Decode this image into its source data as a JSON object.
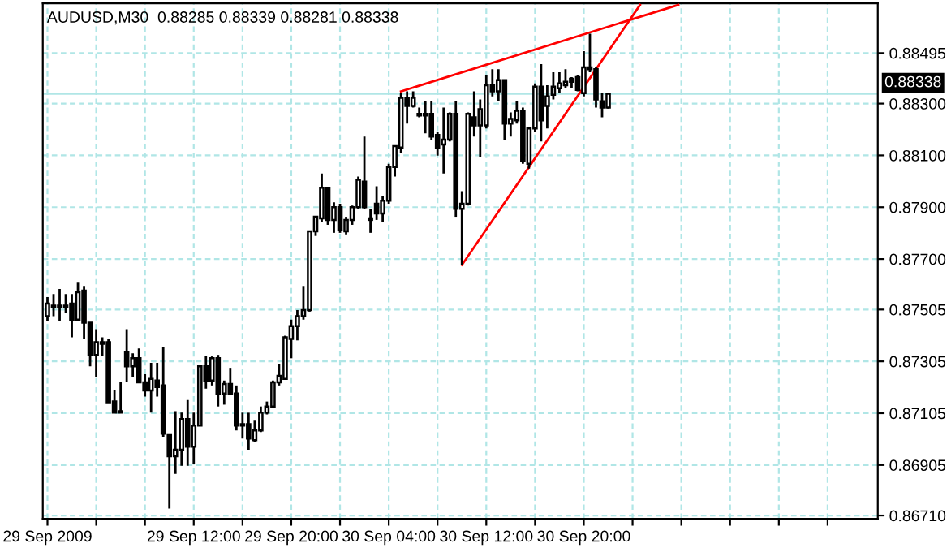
{
  "chart_data": {
    "type": "candlestick",
    "title": "AUDUSD,M30  0.88285 0.88339 0.88281 0.88338",
    "x": [
      "2009-09-29T00:00",
      "2009-09-29T00:30",
      "2009-09-29T01:00",
      "2009-09-29T01:30",
      "2009-09-29T02:00",
      "2009-09-29T02:30",
      "2009-09-29T03:00",
      "2009-09-29T03:30",
      "2009-09-29T04:00",
      "2009-09-29T04:30",
      "2009-09-29T05:00",
      "2009-09-29T05:30",
      "2009-09-29T06:00",
      "2009-09-29T06:30",
      "2009-09-29T07:00",
      "2009-09-29T07:30",
      "2009-09-29T08:00",
      "2009-09-29T08:30",
      "2009-09-29T09:00",
      "2009-09-29T09:30",
      "2009-09-29T10:00",
      "2009-09-29T10:30",
      "2009-09-29T11:00",
      "2009-09-29T11:30",
      "2009-09-29T12:00",
      "2009-09-29T12:30",
      "2009-09-29T13:00",
      "2009-09-29T13:30",
      "2009-09-29T14:00",
      "2009-09-29T14:30",
      "2009-09-29T15:00",
      "2009-09-29T15:30",
      "2009-09-29T16:00",
      "2009-09-29T16:30",
      "2009-09-29T17:00",
      "2009-09-29T17:30",
      "2009-09-29T18:00",
      "2009-09-29T18:30",
      "2009-09-29T19:00",
      "2009-09-29T19:30",
      "2009-09-29T20:00",
      "2009-09-29T20:30",
      "2009-09-29T21:00",
      "2009-09-29T21:30",
      "2009-09-29T22:00",
      "2009-09-29T22:30",
      "2009-09-29T23:00",
      "2009-09-29T23:30",
      "2009-09-30T00:00",
      "2009-09-30T00:30",
      "2009-09-30T01:00",
      "2009-09-30T01:30",
      "2009-09-30T02:00",
      "2009-09-30T02:30",
      "2009-09-30T03:00",
      "2009-09-30T03:30",
      "2009-09-30T04:00",
      "2009-09-30T04:30",
      "2009-09-30T05:00",
      "2009-09-30T05:30",
      "2009-09-30T06:00",
      "2009-09-30T06:30",
      "2009-09-30T07:00",
      "2009-09-30T07:30",
      "2009-09-30T08:00",
      "2009-09-30T08:30",
      "2009-09-30T09:00",
      "2009-09-30T09:30",
      "2009-09-30T10:00",
      "2009-09-30T10:30",
      "2009-09-30T11:00",
      "2009-09-30T11:30",
      "2009-09-30T12:00",
      "2009-09-30T12:30",
      "2009-09-30T13:00",
      "2009-09-30T13:30",
      "2009-09-30T14:00",
      "2009-09-30T14:30",
      "2009-09-30T15:00",
      "2009-09-30T15:30",
      "2009-09-30T16:00",
      "2009-09-30T16:30",
      "2009-09-30T17:00",
      "2009-09-30T17:30",
      "2009-09-30T18:00",
      "2009-09-30T18:30",
      "2009-09-30T19:00",
      "2009-09-30T19:30",
      "2009-09-30T20:00",
      "2009-09-30T20:30",
      "2009-09-30T21:00",
      "2009-09-30T21:30",
      "2009-09-30T22:00"
    ],
    "ohlc": [
      [
        0.87479,
        0.87553,
        0.8746,
        0.87528
      ],
      [
        0.8752,
        0.87565,
        0.87479,
        0.87516
      ],
      [
        0.87516,
        0.87584,
        0.8746,
        0.8752
      ],
      [
        0.8752,
        0.87565,
        0.87491,
        0.87516
      ],
      [
        0.87528,
        0.87565,
        0.87398,
        0.87466
      ],
      [
        0.87466,
        0.87609,
        0.8746,
        0.87572
      ],
      [
        0.87578,
        0.87596,
        0.87392,
        0.87454
      ],
      [
        0.87454,
        0.87454,
        0.87286,
        0.8733
      ],
      [
        0.8733,
        0.87429,
        0.87243,
        0.87379
      ],
      [
        0.87379,
        0.87398,
        0.87324,
        0.87373
      ],
      [
        0.87379,
        0.87392,
        0.87144,
        0.87144
      ],
      [
        0.8715,
        0.87193,
        0.87107,
        0.87107
      ],
      [
        0.87107,
        0.87224,
        0.87107,
        0.87113
      ],
      [
        0.87342,
        0.87429,
        0.87224,
        0.87286
      ],
      [
        0.87286,
        0.87336,
        0.87243,
        0.87317
      ],
      [
        0.87317,
        0.87355,
        0.87224,
        0.87224
      ],
      [
        0.87224,
        0.87255,
        0.87169,
        0.87193
      ],
      [
        0.87193,
        0.87299,
        0.87107,
        0.87237
      ],
      [
        0.87231,
        0.87299,
        0.87169,
        0.87206
      ],
      [
        0.87212,
        0.87361,
        0.87014,
        0.87026
      ],
      [
        0.8702,
        0.8702,
        0.86737,
        0.86939
      ],
      [
        0.86939,
        0.87113,
        0.86871,
        0.86964
      ],
      [
        0.86964,
        0.87107,
        0.86902,
        0.87082
      ],
      [
        0.87082,
        0.87156,
        0.86902,
        0.86976
      ],
      [
        0.86976,
        0.87107,
        0.86908,
        0.87057
      ],
      [
        0.87057,
        0.87286,
        0.87057,
        0.87286
      ],
      [
        0.87286,
        0.87324,
        0.872,
        0.87231
      ],
      [
        0.87231,
        0.87324,
        0.87212,
        0.87317
      ],
      [
        0.87317,
        0.8733,
        0.87131,
        0.87181
      ],
      [
        0.87181,
        0.87231,
        0.87138,
        0.87218
      ],
      [
        0.87218,
        0.8728,
        0.87175,
        0.87181
      ],
      [
        0.87181,
        0.87212,
        0.87038,
        0.87057
      ],
      [
        0.87057,
        0.87107,
        0.87007,
        0.87063
      ],
      [
        0.87063,
        0.87107,
        0.86964,
        0.87007
      ],
      [
        0.87001,
        0.87076,
        0.86995,
        0.87038
      ],
      [
        0.87038,
        0.87131,
        0.87032,
        0.87107
      ],
      [
        0.87107,
        0.8715,
        0.871,
        0.87131
      ],
      [
        0.87131,
        0.87231,
        0.87131,
        0.87224
      ],
      [
        0.87224,
        0.87293,
        0.87212,
        0.87249
      ],
      [
        0.87237,
        0.87404,
        0.87237,
        0.87398
      ],
      [
        0.87392,
        0.87466,
        0.87317,
        0.87441
      ],
      [
        0.87441,
        0.87503,
        0.87386,
        0.87479
      ],
      [
        0.87479,
        0.87596,
        0.87466,
        0.87503
      ],
      [
        0.87503,
        0.87807,
        0.87497,
        0.87807
      ],
      [
        0.87807,
        0.87863,
        0.87789,
        0.87863
      ],
      [
        0.87857,
        0.8803,
        0.87844,
        0.87975
      ],
      [
        0.87975,
        0.87975,
        0.87832,
        0.87851
      ],
      [
        0.87851,
        0.87919,
        0.87801,
        0.879
      ],
      [
        0.879,
        0.87913,
        0.87801,
        0.87813
      ],
      [
        0.87807,
        0.87863,
        0.87795,
        0.87851
      ],
      [
        0.87851,
        0.87906,
        0.87832,
        0.879
      ],
      [
        0.879,
        0.88018,
        0.87894,
        0.88006
      ],
      [
        0.87999,
        0.88173,
        0.87894,
        0.879
      ],
      [
        0.87851,
        0.87894,
        0.87801,
        0.87857
      ],
      [
        0.87913,
        0.87981,
        0.87851,
        0.87876
      ],
      [
        0.87876,
        0.87944,
        0.87844,
        0.87925
      ],
      [
        0.87925,
        0.88068,
        0.87913,
        0.88055
      ],
      [
        0.88055,
        0.88136,
        0.88018,
        0.88136
      ],
      [
        0.8813,
        0.8834,
        0.88111,
        0.88322
      ],
      [
        0.88322,
        0.88347,
        0.88223,
        0.88291
      ],
      [
        0.88291,
        0.88347,
        0.88285,
        0.88322
      ],
      [
        0.88254,
        0.88285,
        0.88247,
        0.8826
      ],
      [
        0.8826,
        0.88309,
        0.88185,
        0.88254
      ],
      [
        0.8826,
        0.88309,
        0.88161,
        0.88173
      ],
      [
        0.88179,
        0.88192,
        0.88099,
        0.8813
      ],
      [
        0.88142,
        0.88285,
        0.8803,
        0.88161
      ],
      [
        0.88161,
        0.88266,
        0.88154,
        0.8826
      ],
      [
        0.8826,
        0.88309,
        0.87863,
        0.87894
      ],
      [
        0.87894,
        0.87962,
        0.87677,
        0.87913
      ],
      [
        0.87913,
        0.88266,
        0.87906,
        0.8826
      ],
      [
        0.88247,
        0.88347,
        0.88173,
        0.88216
      ],
      [
        0.88216,
        0.88316,
        0.88092,
        0.88278
      ],
      [
        0.88216,
        0.88409,
        0.88204,
        0.88371
      ],
      [
        0.88371,
        0.88433,
        0.88328,
        0.88347
      ],
      [
        0.88347,
        0.88433,
        0.88309,
        0.8839
      ],
      [
        0.8839,
        0.8839,
        0.88161,
        0.88223
      ],
      [
        0.88223,
        0.88266,
        0.88173,
        0.88241
      ],
      [
        0.88235,
        0.88309,
        0.88223,
        0.88272
      ],
      [
        0.88272,
        0.88285,
        0.88068,
        0.8808
      ],
      [
        0.88068,
        0.88204,
        0.88049,
        0.88204
      ],
      [
        0.88204,
        0.88378,
        0.88192,
        0.88365
      ],
      [
        0.88365,
        0.88452,
        0.88154,
        0.88235
      ],
      [
        0.88291,
        0.88371,
        0.88204,
        0.88328
      ],
      [
        0.88334,
        0.88421,
        0.88316,
        0.88365
      ],
      [
        0.88359,
        0.88421,
        0.8834,
        0.88378
      ],
      [
        0.88371,
        0.88433,
        0.88359,
        0.88384
      ],
      [
        0.88396,
        0.88402,
        0.88359,
        0.88384
      ],
      [
        0.88402,
        0.88409,
        0.88347,
        0.88353
      ],
      [
        0.8834,
        0.88502,
        0.88328,
        0.8844
      ],
      [
        0.8844,
        0.8857,
        0.88421,
        0.88433
      ],
      [
        0.88433,
        0.8844,
        0.88285,
        0.88316
      ],
      [
        0.88309,
        0.8834,
        0.88247,
        0.88285
      ],
      [
        0.88285,
        0.88339,
        0.88281,
        0.88338
      ]
    ],
    "color": "#000000",
    "series": [
      {
        "type": "line",
        "color": "#ff0000",
        "x": [
          "2009-09-30T05:00",
          "2009-10-01T03:45"
        ],
        "values": [
          0.88347,
          0.88681
        ]
      },
      {
        "type": "line",
        "color": "#ff0000",
        "x": [
          "2009-09-30T10:00",
          "2009-10-01T00:37"
        ],
        "values": [
          0.87677,
          0.88681
        ]
      }
    ],
    "ref_lines": [
      {
        "axis": "y",
        "value": 0.88338,
        "label": "0.88338",
        "color": "#b0e6e6"
      }
    ],
    "xlim": [
      "2009-09-28T23:37",
      "2009-10-01T20:07"
    ],
    "xticks": [
      {
        "value": "2009-09-29T00:00",
        "label": "29 Sep 2009"
      },
      {
        "value": "2009-09-29T04:00",
        "label": null
      },
      {
        "value": "2009-09-29T08:00",
        "label": null
      },
      {
        "value": "2009-09-29T12:00",
        "label": "29 Sep 12:00"
      },
      {
        "value": "2009-09-29T16:00",
        "label": null
      },
      {
        "value": "2009-09-29T20:00",
        "label": "29 Sep 20:00"
      },
      {
        "value": "2009-09-30T00:00",
        "label": null
      },
      {
        "value": "2009-09-30T04:00",
        "label": "30 Sep 04:00"
      },
      {
        "value": "2009-09-30T08:00",
        "label": null
      },
      {
        "value": "2009-09-30T12:00",
        "label": "30 Sep 12:00"
      },
      {
        "value": "2009-09-30T16:00",
        "label": null
      },
      {
        "value": "2009-09-30T20:00",
        "label": "30 Sep 20:00"
      },
      {
        "value": "2009-10-01T00:00",
        "label": null
      },
      {
        "value": "2009-10-01T04:00",
        "label": null
      },
      {
        "value": "2009-10-01T08:00",
        "label": null
      },
      {
        "value": "2009-10-01T12:00",
        "label": null
      },
      {
        "value": "2009-10-01T16:00",
        "label": null
      }
    ],
    "ylim": [
      0.86697,
      0.88687
    ],
    "yticks": [
      {
        "value": 0.8671,
        "label": "0.86710"
      },
      {
        "value": 0.86905,
        "label": "0.86905"
      },
      {
        "value": 0.87105,
        "label": "0.87105"
      },
      {
        "value": 0.87305,
        "label": "0.87305"
      },
      {
        "value": 0.87505,
        "label": "0.87505"
      },
      {
        "value": 0.877,
        "label": "0.87700"
      },
      {
        "value": 0.879,
        "label": "0.87900"
      },
      {
        "value": 0.881,
        "label": "0.88100"
      },
      {
        "value": 0.883,
        "label": "0.88300"
      },
      {
        "value": 0.88495,
        "label": "0.88495"
      }
    ],
    "grid": true
  }
}
